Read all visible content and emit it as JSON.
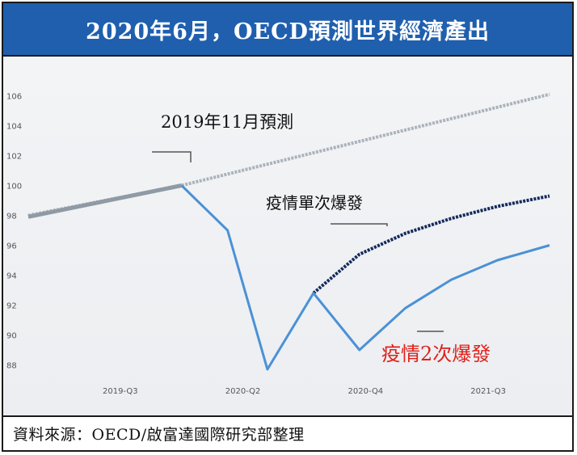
{
  "title": "2020年6月，OECD預測世界經濟產出",
  "source": "資料來源：OECD/啟富達國際研究部整理",
  "chart_data": {
    "type": "line",
    "title": "2020年6月，OECD預測世界經濟產出",
    "ylim": [
      87,
      107
    ],
    "yticks": [
      88,
      90,
      92,
      94,
      96,
      98,
      100,
      102,
      104,
      106
    ],
    "x_range": [
      0,
      17
    ],
    "xticks": [
      {
        "pos": 3,
        "label": "2019-Q3"
      },
      {
        "pos": 7,
        "label": "2020-Q2"
      },
      {
        "pos": 11,
        "label": "2020-Q4"
      },
      {
        "pos": 15,
        "label": "2021-Q3"
      }
    ],
    "series": [
      {
        "name": "2019年11月預測",
        "color": "#aab3bb",
        "dash": true,
        "x": [
          0,
          5,
          17
        ],
        "values": [
          98.0,
          100.0,
          106.1
        ]
      },
      {
        "name": "",
        "color": "#8f9aa4",
        "dash": false,
        "x": [
          0,
          5
        ],
        "values": [
          97.9,
          100.0
        ]
      },
      {
        "name": "疫情單次爆發",
        "color": "#142a5c",
        "dash": true,
        "x": [
          9.3,
          10.8,
          12.3,
          13.8,
          15.3,
          17
        ],
        "values": [
          92.8,
          95.4,
          96.8,
          97.8,
          98.6,
          99.3
        ]
      },
      {
        "name": "疫情2次爆發",
        "color": "#4b91d6",
        "dash": false,
        "x": [
          5,
          6.5,
          7.8,
          9.3,
          10.8,
          12.3,
          13.8,
          15.3,
          17
        ],
        "values": [
          100.0,
          97.0,
          87.7,
          92.8,
          89.0,
          91.8,
          93.7,
          95.0,
          96.0
        ]
      }
    ],
    "annotations": [
      {
        "text": "2019年11月預測",
        "series": 0,
        "color": "#111111"
      },
      {
        "text": "疫情單次爆發",
        "series": 2,
        "color": "#111111"
      },
      {
        "text": "疫情2次爆發",
        "series": 3,
        "color": "#e0201b"
      }
    ]
  }
}
